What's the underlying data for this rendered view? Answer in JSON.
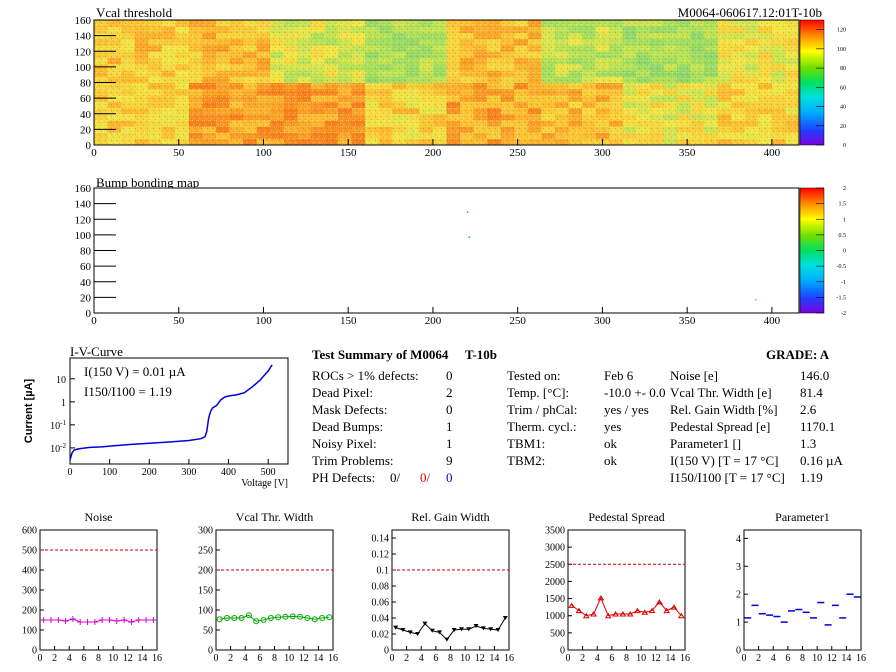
{
  "header": {
    "map1_title": "Vcal threshold",
    "module_id": "M0064-060617.12:01T-10b",
    "map2_title": "Bump bonding map"
  },
  "summary": {
    "title": "Test Summary of M0064",
    "temp_id": "T-10b",
    "grade": "GRADE:  A",
    "left": [
      {
        "label": "ROCs > 1% defects:",
        "value": "0"
      },
      {
        "label": "Dead Pixel:",
        "value": "2"
      },
      {
        "label": "Mask Defects:",
        "value": "0"
      },
      {
        "label": "Dead Bumps:",
        "value": "1"
      },
      {
        "label": "Noisy Pixel:",
        "value": "1"
      },
      {
        "label": "Trim Problems:",
        "value": "9"
      }
    ],
    "ph_defects": {
      "label": "PH Defects:",
      "v1": "0/",
      "v2": "0/",
      "v3": "0"
    },
    "mid": [
      {
        "label": "Tested on:",
        "value": "Feb 6"
      },
      {
        "label": "Temp. [°C]:",
        "value": "-10.0 +- 0.0"
      },
      {
        "label": "Trim / phCal:",
        "value": "yes / yes"
      },
      {
        "label": "Therm. cycl.:",
        "value": "yes"
      },
      {
        "label": "TBM1:",
        "value": "ok"
      },
      {
        "label": "TBM2:",
        "value": "ok"
      }
    ],
    "right": [
      {
        "label": "Noise [e]",
        "value": "146.0"
      },
      {
        "label": "Vcal Thr. Width [e]",
        "value": "81.4"
      },
      {
        "label": "Rel. Gain Width [%]",
        "value": "2.6"
      },
      {
        "label": "Pedestal Spread [e]",
        "value": "1170.1"
      },
      {
        "label": "Parameter1 []",
        "value": "1.3"
      },
      {
        "label": "I(150 V) [T = 17 °C]",
        "value": "0.16 µA"
      },
      {
        "label": "I150/I100  [T = 17 °C]",
        "value": "1.19"
      }
    ]
  },
  "colors": {
    "ph_red": "#e00000",
    "ph_blue": "#0000cc",
    "noise": "#d400d4",
    "vcal": "#00aa00",
    "gain": "#000000",
    "pedestal": "#dd0000",
    "param1": "#0000cc",
    "iv": "#0000dd",
    "ref_line": "#cc0000"
  },
  "chart_data": [
    {
      "type": "heatmap",
      "name": "vcal-threshold-map",
      "title": "Vcal threshold",
      "xlim": [
        0,
        416
      ],
      "ylim": [
        0,
        160
      ],
      "xticks": [
        0,
        50,
        100,
        150,
        200,
        250,
        300,
        350,
        400
      ],
      "yticks": [
        0,
        20,
        40,
        60,
        80,
        100,
        120,
        140,
        160
      ],
      "zticks": [
        0,
        20,
        40,
        60,
        80,
        100,
        120
      ],
      "roc_means_bottom": [
        100,
        110,
        112,
        100,
        108,
        104,
        95,
        100
      ],
      "roc_means_top": [
        102,
        104,
        92,
        84,
        104,
        88,
        83,
        95
      ]
    },
    {
      "type": "heatmap",
      "name": "bump-bonding-map",
      "title": "Bump bonding map",
      "xlim": [
        0,
        416
      ],
      "ylim": [
        0,
        160
      ],
      "xticks": [
        0,
        50,
        100,
        150,
        200,
        250,
        300,
        350,
        400
      ],
      "yticks": [
        0,
        20,
        40,
        60,
        80,
        100,
        120,
        140,
        160
      ],
      "zticks": [
        -2,
        -1.5,
        -1,
        -0.5,
        0,
        0.5,
        1,
        1.5,
        2
      ],
      "zticklabels": [
        "-2",
        "-1.5",
        "-1",
        "-0.5",
        "0",
        "0.5",
        "1",
        "1.5",
        "2"
      ],
      "points": [
        {
          "x": 220,
          "y": 130
        },
        {
          "x": 221,
          "y": 98
        },
        {
          "x": 390,
          "y": 18
        }
      ]
    },
    {
      "type": "line",
      "name": "iv-curve",
      "title": "I-V-Curve",
      "xlabel": "Voltage [V]",
      "ylabel": "Current [µA]",
      "annotation1": "I(150 V) = 0.01 µA",
      "annotation2": "I150/I100 =  1.19",
      "xlim": [
        0,
        550
      ],
      "ylog": true,
      "ylim": [
        0.002,
        80
      ],
      "xticks": [
        0,
        100,
        200,
        300,
        400,
        500
      ],
      "yticks": [
        0.01,
        0.1,
        1,
        10
      ],
      "yticklabels": [
        "10-2",
        "10-1",
        "1",
        "10"
      ],
      "x": [
        0,
        5,
        10,
        20,
        30,
        50,
        80,
        100,
        150,
        200,
        250,
        300,
        330,
        340,
        345,
        350,
        355,
        360,
        370,
        380,
        390,
        400,
        410,
        420,
        440,
        460,
        480,
        500,
        510
      ],
      "y": [
        0.003,
        0.006,
        0.008,
        0.009,
        0.0095,
        0.0105,
        0.011,
        0.012,
        0.014,
        0.016,
        0.018,
        0.021,
        0.025,
        0.03,
        0.05,
        0.2,
        0.4,
        0.55,
        0.7,
        1.2,
        1.6,
        1.8,
        1.9,
        2.0,
        2.5,
        4.5,
        9.0,
        22,
        40
      ]
    },
    {
      "type": "line",
      "name": "noise-per-roc",
      "title": "Noise",
      "xlim": [
        0,
        16
      ],
      "ylim": [
        0,
        600
      ],
      "xticks": [
        0,
        2,
        4,
        6,
        8,
        10,
        12,
        14,
        16
      ],
      "yticks": [
        0,
        100,
        200,
        300,
        400,
        500,
        600
      ],
      "reference": 500,
      "marker": "plus",
      "x": [
        0.5,
        1.5,
        2.5,
        3.5,
        4.5,
        5.5,
        6.5,
        7.5,
        8.5,
        9.5,
        10.5,
        11.5,
        12.5,
        13.5,
        14.5,
        15.5
      ],
      "values": [
        150,
        150,
        150,
        145,
        155,
        140,
        140,
        140,
        150,
        150,
        145,
        150,
        140,
        150,
        150,
        150
      ]
    },
    {
      "type": "line",
      "name": "vcal-thr-width-per-roc",
      "title": "Vcal Thr. Width",
      "xlim": [
        0,
        16
      ],
      "ylim": [
        0,
        300
      ],
      "xticks": [
        0,
        2,
        4,
        6,
        8,
        10,
        12,
        14,
        16
      ],
      "yticks": [
        0,
        50,
        100,
        150,
        200,
        250,
        300
      ],
      "reference": 200,
      "marker": "circle",
      "x": [
        0.5,
        1.5,
        2.5,
        3.5,
        4.5,
        5.5,
        6.5,
        7.5,
        8.5,
        9.5,
        10.5,
        11.5,
        12.5,
        13.5,
        14.5,
        15.5
      ],
      "values": [
        77,
        80,
        80,
        80,
        87,
        72,
        75,
        80,
        82,
        83,
        84,
        83,
        80,
        77,
        80,
        82
      ]
    },
    {
      "type": "line",
      "name": "rel-gain-width-per-roc",
      "title": "Rel. Gain Width",
      "xlim": [
        0,
        16
      ],
      "ylim": [
        0,
        0.15
      ],
      "xticks": [
        0,
        2,
        4,
        6,
        8,
        10,
        12,
        14,
        16
      ],
      "yticks": [
        0,
        0.02,
        0.04,
        0.06,
        0.08,
        0.1,
        0.12,
        0.14
      ],
      "yticklabels": [
        "0",
        "0.02",
        "0.04",
        "0.06",
        "0.08",
        "0.1",
        "0.12",
        "0.14"
      ],
      "reference": 0.1,
      "marker": "triangle-down",
      "x": [
        0.5,
        1.5,
        2.5,
        3.5,
        4.5,
        5.5,
        6.5,
        7.5,
        8.5,
        9.5,
        10.5,
        11.5,
        12.5,
        13.5,
        14.5,
        15.5
      ],
      "values": [
        0.028,
        0.025,
        0.022,
        0.02,
        0.033,
        0.024,
        0.022,
        0.013,
        0.025,
        0.026,
        0.026,
        0.03,
        0.027,
        0.026,
        0.025,
        0.04
      ]
    },
    {
      "type": "line",
      "name": "pedestal-spread-per-roc",
      "title": "Pedestal Spread",
      "xlim": [
        0,
        16
      ],
      "ylim": [
        0,
        3500
      ],
      "xticks": [
        0,
        2,
        4,
        6,
        8,
        10,
        12,
        14,
        16
      ],
      "yticks": [
        0,
        500,
        1000,
        1500,
        2000,
        2500,
        3000,
        3500
      ],
      "reference": 2500,
      "marker": "triangle-up",
      "x": [
        0.5,
        1.5,
        2.5,
        3.5,
        4.5,
        5.5,
        6.5,
        7.5,
        8.5,
        9.5,
        10.5,
        11.5,
        12.5,
        13.5,
        14.5,
        15.5
      ],
      "values": [
        1300,
        1150,
        1000,
        1050,
        1520,
        1000,
        1050,
        1050,
        1050,
        1150,
        1100,
        1150,
        1400,
        1150,
        1250,
        1000
      ]
    },
    {
      "type": "scatter",
      "name": "parameter1-per-roc",
      "title": "Parameter1",
      "xlim": [
        0,
        16
      ],
      "ylim": [
        0,
        4.3
      ],
      "xticks": [
        0,
        2,
        4,
        6,
        8,
        10,
        12,
        14,
        16
      ],
      "yticks": [
        0,
        1,
        2,
        3,
        4
      ],
      "marker": "hbar",
      "x": [
        0.5,
        1.5,
        2.5,
        3.5,
        4.5,
        5.5,
        6.5,
        7.5,
        8.5,
        9.5,
        10.5,
        11.5,
        12.5,
        13.5,
        14.5,
        15.5
      ],
      "values": [
        1.15,
        1.6,
        1.3,
        1.25,
        1.2,
        1.0,
        1.4,
        1.45,
        1.35,
        1.15,
        1.7,
        0.9,
        1.6,
        1.15,
        2.0,
        1.9
      ]
    }
  ]
}
